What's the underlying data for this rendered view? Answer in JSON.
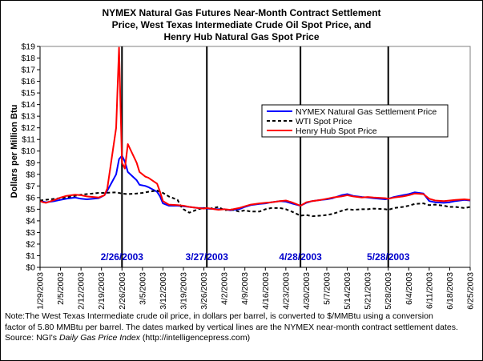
{
  "chart_data": {
    "type": "line",
    "title_lines": [
      "NYMEX Natural Gas Futures Near-Month Contract Settlement",
      "Price, West Texas Intermediate Crude Oil Spot Price, and",
      "Henry Hub Natural Gas Spot Price"
    ],
    "ylabel": "Dollars per Million Btu",
    "ylim": [
      0,
      19
    ],
    "y_ticks": [
      "$0",
      "$1",
      "$2",
      "$3",
      "$4",
      "$5",
      "$6",
      "$7",
      "$8",
      "$9",
      "$10",
      "$11",
      "$12",
      "$13",
      "$14",
      "$15",
      "$16",
      "$17",
      "$18",
      "$19"
    ],
    "x_ticks": [
      "1/29/2003",
      "2/5/2003",
      "2/12/2003",
      "2/19/2003",
      "2/26/2003",
      "3/5/2003",
      "3/12/2003",
      "3/19/2003",
      "3/26/2003",
      "4/2/2003",
      "4/9/2003",
      "4/16/2003",
      "4/23/2003",
      "4/30/2003",
      "5/7/2003",
      "5/14/2003",
      "5/21/2003",
      "5/28/2003",
      "6/4/2003",
      "6/11/2003",
      "6/18/2003",
      "6/25/2003"
    ],
    "xlim": [
      "2003-01-29",
      "2003-06-25"
    ],
    "grid": false,
    "legend_position": "top-right",
    "settlement_dates": [
      "2/26/2003",
      "3/27/2003",
      "4/28/2003",
      "5/28/2003"
    ],
    "series": [
      {
        "name": "NYMEX Natural Gas Settlement Price",
        "color": "#0000ff",
        "style": "solid",
        "points": [
          [
            "2003-01-29",
            5.7
          ],
          [
            "2003-01-30",
            5.65
          ],
          [
            "2003-01-31",
            5.6
          ],
          [
            "2003-02-03",
            5.7
          ],
          [
            "2003-02-05",
            5.8
          ],
          [
            "2003-02-07",
            5.9
          ],
          [
            "2003-02-10",
            6.0
          ],
          [
            "2003-02-12",
            5.9
          ],
          [
            "2003-02-14",
            5.85
          ],
          [
            "2003-02-18",
            5.95
          ],
          [
            "2003-02-20",
            6.2
          ],
          [
            "2003-02-21",
            6.6
          ],
          [
            "2003-02-24",
            8.0
          ],
          [
            "2003-02-25",
            9.3
          ],
          [
            "2003-02-26",
            9.6
          ],
          [
            "2003-02-27",
            9.1
          ],
          [
            "2003-02-28",
            8.2
          ],
          [
            "2003-03-03",
            7.5
          ],
          [
            "2003-03-04",
            7.1
          ],
          [
            "2003-03-06",
            7.0
          ],
          [
            "2003-03-07",
            6.9
          ],
          [
            "2003-03-10",
            6.5
          ],
          [
            "2003-03-11",
            6.1
          ],
          [
            "2003-03-12",
            5.5
          ],
          [
            "2003-03-14",
            5.3
          ],
          [
            "2003-03-17",
            5.3
          ],
          [
            "2003-03-19",
            5.25
          ],
          [
            "2003-03-21",
            5.2
          ],
          [
            "2003-03-24",
            5.1
          ],
          [
            "2003-03-26",
            5.1
          ],
          [
            "2003-03-27",
            5.05
          ],
          [
            "2003-03-31",
            5.0
          ],
          [
            "2003-04-02",
            5.0
          ],
          [
            "2003-04-04",
            4.9
          ],
          [
            "2003-04-07",
            5.0
          ],
          [
            "2003-04-09",
            5.2
          ],
          [
            "2003-04-11",
            5.35
          ],
          [
            "2003-04-14",
            5.45
          ],
          [
            "2003-04-16",
            5.5
          ],
          [
            "2003-04-18",
            5.6
          ],
          [
            "2003-04-21",
            5.7
          ],
          [
            "2003-04-23",
            5.65
          ],
          [
            "2003-04-25",
            5.5
          ],
          [
            "2003-04-28",
            5.3
          ],
          [
            "2003-04-30",
            5.55
          ],
          [
            "2003-05-02",
            5.7
          ],
          [
            "2003-05-05",
            5.8
          ],
          [
            "2003-05-07",
            5.85
          ],
          [
            "2003-05-09",
            5.95
          ],
          [
            "2003-05-12",
            6.2
          ],
          [
            "2003-05-14",
            6.3
          ],
          [
            "2003-05-16",
            6.15
          ],
          [
            "2003-05-19",
            6.05
          ],
          [
            "2003-05-21",
            6.0
          ],
          [
            "2003-05-23",
            5.95
          ],
          [
            "2003-05-27",
            5.85
          ],
          [
            "2003-05-28",
            5.9
          ],
          [
            "2003-05-30",
            6.05
          ],
          [
            "2003-06-02",
            6.2
          ],
          [
            "2003-06-04",
            6.3
          ],
          [
            "2003-06-06",
            6.45
          ],
          [
            "2003-06-09",
            6.35
          ],
          [
            "2003-06-11",
            5.7
          ],
          [
            "2003-06-13",
            5.6
          ],
          [
            "2003-06-16",
            5.55
          ],
          [
            "2003-06-18",
            5.6
          ],
          [
            "2003-06-20",
            5.7
          ],
          [
            "2003-06-23",
            5.8
          ],
          [
            "2003-06-25",
            5.75
          ]
        ]
      },
      {
        "name": "WTI Spot Price",
        "color": "#000000",
        "style": "dashed",
        "points": [
          [
            "2003-01-29",
            5.75
          ],
          [
            "2003-02-03",
            5.9
          ],
          [
            "2003-02-05",
            5.95
          ],
          [
            "2003-02-10",
            6.15
          ],
          [
            "2003-02-12",
            6.25
          ],
          [
            "2003-02-14",
            6.3
          ],
          [
            "2003-02-18",
            6.4
          ],
          [
            "2003-02-20",
            6.4
          ],
          [
            "2003-02-24",
            6.45
          ],
          [
            "2003-02-26",
            6.35
          ],
          [
            "2003-02-28",
            6.3
          ],
          [
            "2003-03-03",
            6.35
          ],
          [
            "2003-03-05",
            6.4
          ],
          [
            "2003-03-07",
            6.5
          ],
          [
            "2003-03-10",
            6.6
          ],
          [
            "2003-03-12",
            6.4
          ],
          [
            "2003-03-14",
            6.1
          ],
          [
            "2003-03-17",
            5.8
          ],
          [
            "2003-03-18",
            5.3
          ],
          [
            "2003-03-19",
            5.0
          ],
          [
            "2003-03-21",
            4.7
          ],
          [
            "2003-03-24",
            5.0
          ],
          [
            "2003-03-26",
            5.1
          ],
          [
            "2003-03-28",
            5.05
          ],
          [
            "2003-03-31",
            5.2
          ],
          [
            "2003-04-02",
            4.9
          ],
          [
            "2003-04-04",
            5.0
          ],
          [
            "2003-04-07",
            4.8
          ],
          [
            "2003-04-09",
            4.9
          ],
          [
            "2003-04-11",
            4.8
          ],
          [
            "2003-04-14",
            4.8
          ],
          [
            "2003-04-16",
            5.0
          ],
          [
            "2003-04-18",
            5.1
          ],
          [
            "2003-04-21",
            5.1
          ],
          [
            "2003-04-23",
            5.0
          ],
          [
            "2003-04-25",
            4.8
          ],
          [
            "2003-04-28",
            4.45
          ],
          [
            "2003-04-30",
            4.5
          ],
          [
            "2003-05-02",
            4.4
          ],
          [
            "2003-05-05",
            4.45
          ],
          [
            "2003-05-07",
            4.5
          ],
          [
            "2003-05-09",
            4.6
          ],
          [
            "2003-05-12",
            4.85
          ],
          [
            "2003-05-14",
            5.0
          ],
          [
            "2003-05-16",
            4.95
          ],
          [
            "2003-05-19",
            5.0
          ],
          [
            "2003-05-21",
            5.0
          ],
          [
            "2003-05-23",
            5.05
          ],
          [
            "2003-05-27",
            5.0
          ],
          [
            "2003-05-28",
            4.95
          ],
          [
            "2003-05-30",
            5.1
          ],
          [
            "2003-06-02",
            5.2
          ],
          [
            "2003-06-04",
            5.3
          ],
          [
            "2003-06-06",
            5.45
          ],
          [
            "2003-06-09",
            5.5
          ],
          [
            "2003-06-11",
            5.35
          ],
          [
            "2003-06-13",
            5.4
          ],
          [
            "2003-06-16",
            5.3
          ],
          [
            "2003-06-18",
            5.2
          ],
          [
            "2003-06-20",
            5.2
          ],
          [
            "2003-06-23",
            5.1
          ],
          [
            "2003-06-25",
            5.2
          ]
        ]
      },
      {
        "name": "Henry Hub Spot Price",
        "color": "#ff0000",
        "style": "solid",
        "points": [
          [
            "2003-01-29",
            5.7
          ],
          [
            "2003-01-30",
            5.6
          ],
          [
            "2003-01-31",
            5.55
          ],
          [
            "2003-02-03",
            5.8
          ],
          [
            "2003-02-05",
            6.0
          ],
          [
            "2003-02-07",
            6.15
          ],
          [
            "2003-02-10",
            6.25
          ],
          [
            "2003-02-12",
            6.2
          ],
          [
            "2003-02-14",
            6.1
          ],
          [
            "2003-02-18",
            6.0
          ],
          [
            "2003-02-20",
            6.2
          ],
          [
            "2003-02-21",
            6.8
          ],
          [
            "2003-02-24",
            12.0
          ],
          [
            "2003-02-25",
            18.9
          ],
          [
            "2003-02-26",
            9.0
          ],
          [
            "2003-02-27",
            8.5
          ],
          [
            "2003-02-28",
            10.6
          ],
          [
            "2003-03-03",
            9.0
          ],
          [
            "2003-03-04",
            8.2
          ],
          [
            "2003-03-06",
            7.8
          ],
          [
            "2003-03-07",
            7.7
          ],
          [
            "2003-03-10",
            7.2
          ],
          [
            "2003-03-11",
            6.5
          ],
          [
            "2003-03-12",
            5.7
          ],
          [
            "2003-03-14",
            5.4
          ],
          [
            "2003-03-17",
            5.35
          ],
          [
            "2003-03-19",
            5.3
          ],
          [
            "2003-03-21",
            5.2
          ],
          [
            "2003-03-24",
            5.1
          ],
          [
            "2003-03-26",
            5.05
          ],
          [
            "2003-03-27",
            5.1
          ],
          [
            "2003-03-31",
            4.95
          ],
          [
            "2003-04-02",
            5.0
          ],
          [
            "2003-04-04",
            4.95
          ],
          [
            "2003-04-07",
            5.1
          ],
          [
            "2003-04-09",
            5.25
          ],
          [
            "2003-04-11",
            5.4
          ],
          [
            "2003-04-14",
            5.5
          ],
          [
            "2003-04-16",
            5.55
          ],
          [
            "2003-04-18",
            5.6
          ],
          [
            "2003-04-21",
            5.7
          ],
          [
            "2003-04-23",
            5.75
          ],
          [
            "2003-04-25",
            5.6
          ],
          [
            "2003-04-28",
            5.3
          ],
          [
            "2003-04-30",
            5.6
          ],
          [
            "2003-05-02",
            5.7
          ],
          [
            "2003-05-05",
            5.8
          ],
          [
            "2003-05-07",
            5.9
          ],
          [
            "2003-05-09",
            6.0
          ],
          [
            "2003-05-12",
            6.1
          ],
          [
            "2003-05-14",
            6.2
          ],
          [
            "2003-05-16",
            6.1
          ],
          [
            "2003-05-19",
            6.0
          ],
          [
            "2003-05-21",
            6.05
          ],
          [
            "2003-05-23",
            6.0
          ],
          [
            "2003-05-27",
            5.95
          ],
          [
            "2003-05-28",
            5.9
          ],
          [
            "2003-05-30",
            6.0
          ],
          [
            "2003-06-02",
            6.1
          ],
          [
            "2003-06-04",
            6.2
          ],
          [
            "2003-06-06",
            6.35
          ],
          [
            "2003-06-09",
            6.3
          ],
          [
            "2003-06-11",
            5.9
          ],
          [
            "2003-06-13",
            5.75
          ],
          [
            "2003-06-16",
            5.7
          ],
          [
            "2003-06-18",
            5.75
          ],
          [
            "2003-06-20",
            5.8
          ],
          [
            "2003-06-23",
            5.85
          ],
          [
            "2003-06-25",
            5.8
          ]
        ]
      }
    ]
  },
  "note": {
    "line1": "Note:The West Texas Intermediate crude oil price, in dollars per barrel,  is converted to $/MMBtu using a conversion",
    "line2": "factor of 5.80 MMBtu per barrel.  The dates marked by vertical lines are the NYMEX near-month contract settlement dates.",
    "source_prefix": "Source:  NGI's ",
    "source_italic": "Daily Gas Price Index",
    "source_suffix": " (http://intelligencepress.com)"
  }
}
